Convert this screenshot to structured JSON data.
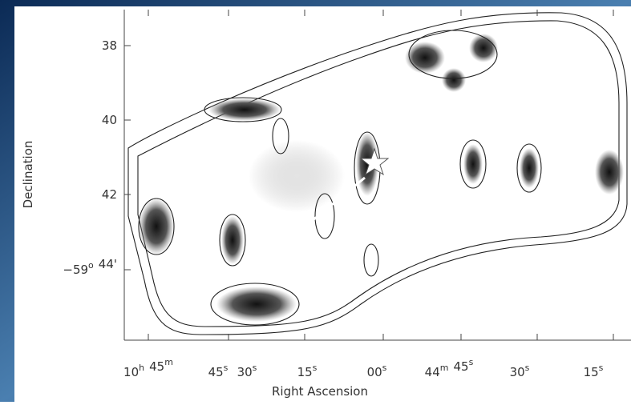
{
  "axes": {
    "x_label": "Right Ascension",
    "y_label": "Declination",
    "x_ticks": [
      [
        {
          "text": "10",
          "sup": "h"
        },
        {
          "text": "45",
          "sup": "m"
        }
      ],
      [
        {
          "text": "45",
          "sup": "s"
        }
      ],
      [
        {
          "text": "30",
          "sup": "s"
        }
      ],
      [
        {
          "text": "15",
          "sup": "s"
        }
      ],
      [
        {
          "text": "00",
          "sup": "s"
        }
      ],
      [
        {
          "text": "44",
          "sup": "m"
        },
        {
          "text": "45",
          "sup": "s"
        }
      ],
      [
        {
          "text": "30",
          "sup": "s"
        }
      ],
      [
        {
          "text": "15",
          "sup": "s"
        }
      ]
    ],
    "y_ticks": [
      [
        {
          "text": "38"
        }
      ],
      [
        {
          "text": "40"
        }
      ],
      [
        {
          "text": "42"
        }
      ],
      [
        {
          "text": "−59",
          "sup": "o"
        },
        {
          "text": "44'"
        }
      ]
    ]
  }
}
